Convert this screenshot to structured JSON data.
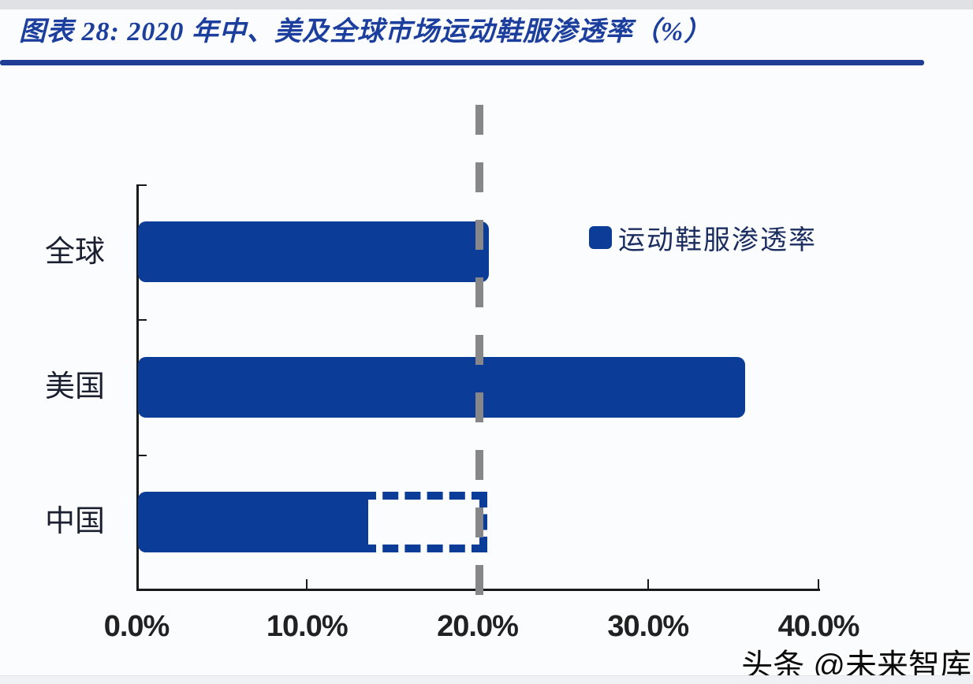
{
  "figure": {
    "title": "图表 28:  2020 年中、美及全球市场运动鞋服渗透率（%）",
    "watermark": "头条 @未来智库"
  },
  "legend": {
    "label": "运动鞋服渗透率"
  },
  "colors": {
    "bar": "#0B3D98",
    "title_text": "#1C3F9E",
    "divider": "#1F3D94",
    "axis": "#1A1A1A",
    "reference_line": "#87878A",
    "category_label": "#1A2030",
    "tick_label": "#212121",
    "legend_label": "#1A2D5E"
  },
  "chart_data": {
    "type": "bar",
    "orientation": "horizontal",
    "title": "2020 年中、美及全球市场运动鞋服渗透率（%）",
    "categories": [
      "全球",
      "美国",
      "中国"
    ],
    "series": [
      {
        "name": "运动鞋服渗透率",
        "values": [
          20.6,
          35.6,
          13.5
        ]
      }
    ],
    "china_dashed_extension": {
      "category": "中国",
      "from_pct": 13.5,
      "to_pct": 20.6
    },
    "reference_line_pct": 20.0,
    "x_ticks": [
      "0.0%",
      "10.0%",
      "20.0%",
      "30.0%",
      "40.0%"
    ],
    "x_tick_values": [
      0,
      10,
      20,
      30,
      40
    ],
    "xlim": [
      0,
      40
    ],
    "grid": false,
    "legend_position": "upper-right-inside"
  }
}
